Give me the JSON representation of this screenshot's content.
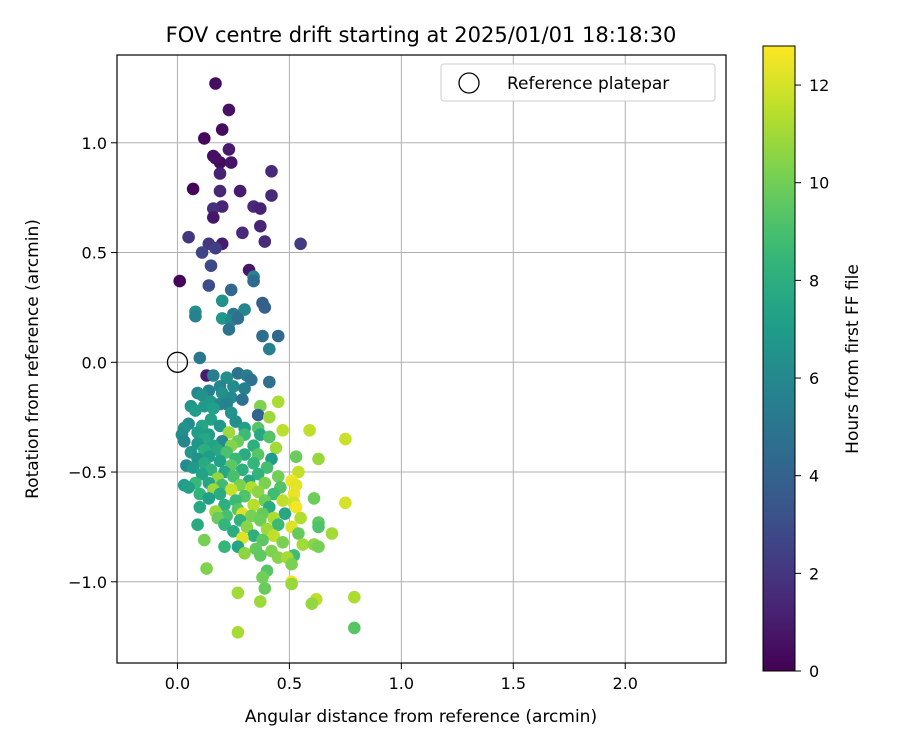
{
  "chart_data": {
    "type": "scatter",
    "title": "FOV centre drift starting at 2025/01/01 18:18:30",
    "xlabel": "Angular distance from reference (arcmin)",
    "ylabel": "Rotation from reference (arcmin)",
    "xlim": [
      -0.27,
      2.45
    ],
    "ylim": [
      -1.37,
      1.4
    ],
    "x_ticks": [
      0.0,
      0.5,
      1.0,
      1.5,
      2.0
    ],
    "x_tick_labels": [
      "0.0",
      "0.5",
      "1.0",
      "1.5",
      "2.0"
    ],
    "y_ticks": [
      -1.0,
      -0.5,
      0.0,
      0.5,
      1.0
    ],
    "y_tick_labels": [
      "−1.0",
      "−0.5",
      "0.0",
      "0.5",
      "1.0"
    ],
    "grid": true,
    "legend_position": "top-right",
    "legend": [
      {
        "label": "Reference platepar",
        "marker": "open-circle"
      }
    ],
    "reference_point": {
      "x": 0.0,
      "y": 0.0
    },
    "colorbar": {
      "label": "Hours from first FF file",
      "colormap": "viridis",
      "range": [
        0,
        12.8
      ],
      "ticks": [
        0,
        2,
        4,
        6,
        8,
        10,
        12
      ],
      "tick_labels": [
        "0",
        "2",
        "4",
        "6",
        "8",
        "10",
        "12"
      ]
    },
    "points": [
      [
        0.17,
        1.27,
        0.5
      ],
      [
        0.23,
        1.15,
        0.6
      ],
      [
        0.2,
        1.06,
        0.4
      ],
      [
        0.12,
        1.02,
        0.3
      ],
      [
        0.16,
        0.94,
        0.5
      ],
      [
        0.19,
        0.91,
        0.4
      ],
      [
        0.24,
        0.91,
        0.7
      ],
      [
        0.17,
        0.93,
        0.6
      ],
      [
        0.23,
        0.97,
        0.9
      ],
      [
        0.42,
        0.87,
        1.5
      ],
      [
        0.19,
        0.86,
        1.2
      ],
      [
        0.07,
        0.79,
        0.2
      ],
      [
        0.19,
        0.78,
        1.4
      ],
      [
        0.28,
        0.78,
        1.0
      ],
      [
        0.42,
        0.76,
        1.6
      ],
      [
        0.2,
        0.71,
        1.3
      ],
      [
        0.34,
        0.71,
        1.5
      ],
      [
        0.16,
        0.7,
        1.7
      ],
      [
        0.37,
        0.7,
        1.2
      ],
      [
        0.16,
        0.66,
        0.8
      ],
      [
        0.37,
        0.62,
        1.3
      ],
      [
        0.29,
        0.59,
        1.5
      ],
      [
        0.05,
        0.57,
        2.1
      ],
      [
        0.55,
        0.54,
        2.3
      ],
      [
        0.14,
        0.54,
        2.0
      ],
      [
        0.2,
        0.54,
        1.0
      ],
      [
        0.39,
        0.55,
        1.6
      ],
      [
        0.17,
        0.52,
        2.4
      ],
      [
        0.11,
        0.5,
        2.6
      ],
      [
        0.15,
        0.44,
        2.8
      ],
      [
        0.32,
        0.42,
        0.8
      ],
      [
        0.34,
        0.39,
        5.8
      ],
      [
        0.01,
        0.37,
        0.2
      ],
      [
        0.34,
        0.37,
        4.4
      ],
      [
        0.14,
        0.35,
        3.0
      ],
      [
        0.24,
        0.33,
        4.2
      ],
      [
        0.2,
        0.28,
        6.5
      ],
      [
        0.38,
        0.27,
        3.8
      ],
      [
        0.39,
        0.25,
        3.9
      ],
      [
        0.08,
        0.23,
        6.3
      ],
      [
        0.3,
        0.24,
        5.9
      ],
      [
        0.25,
        0.22,
        5.1
      ],
      [
        0.08,
        0.21,
        5.7
      ],
      [
        0.2,
        0.2,
        6.8
      ],
      [
        0.24,
        0.19,
        6.0
      ],
      [
        0.27,
        0.2,
        4.7
      ],
      [
        0.23,
        0.15,
        4.9
      ],
      [
        0.38,
        0.12,
        4.6
      ],
      [
        0.45,
        0.12,
        4.3
      ],
      [
        0.41,
        0.06,
        5.6
      ],
      [
        0.1,
        0.02,
        5.1
      ],
      [
        0.13,
        -0.06,
        1.0
      ],
      [
        0.16,
        -0.06,
        5.4
      ],
      [
        0.27,
        -0.05,
        4.9
      ],
      [
        0.31,
        -0.06,
        5.3
      ],
      [
        0.22,
        -0.07,
        6.3
      ],
      [
        0.33,
        -0.08,
        4.8
      ],
      [
        0.41,
        -0.09,
        4.7
      ],
      [
        0.19,
        -0.11,
        5.9
      ],
      [
        0.25,
        -0.11,
        6.2
      ],
      [
        0.3,
        -0.12,
        5.5
      ],
      [
        0.14,
        -0.13,
        5.7
      ],
      [
        0.2,
        -0.14,
        6.4
      ],
      [
        0.09,
        -0.14,
        5.9
      ],
      [
        0.11,
        -0.15,
        6.5
      ],
      [
        0.24,
        -0.16,
        6.1
      ],
      [
        0.29,
        -0.17,
        4.8
      ],
      [
        0.15,
        -0.18,
        6.9
      ],
      [
        0.19,
        -0.19,
        6.0
      ],
      [
        0.22,
        -0.19,
        5.7
      ],
      [
        0.06,
        -0.2,
        6.6
      ],
      [
        0.12,
        -0.2,
        6.9
      ],
      [
        0.37,
        -0.2,
        10.3
      ],
      [
        0.16,
        -0.21,
        7.2
      ],
      [
        0.45,
        -0.18,
        11.2
      ],
      [
        0.08,
        -0.22,
        7.0
      ],
      [
        0.24,
        -0.23,
        6.6
      ],
      [
        0.36,
        -0.24,
        4.1
      ],
      [
        0.41,
        -0.25,
        10.9
      ],
      [
        0.15,
        -0.26,
        7.3
      ],
      [
        0.26,
        -0.27,
        6.4
      ],
      [
        0.05,
        -0.28,
        6.2
      ],
      [
        0.11,
        -0.29,
        7.5
      ],
      [
        0.19,
        -0.29,
        6.8
      ],
      [
        0.03,
        -0.3,
        6.5
      ],
      [
        0.3,
        -0.3,
        7.1
      ],
      [
        0.36,
        -0.3,
        9.4
      ],
      [
        0.47,
        -0.31,
        11.5
      ],
      [
        0.59,
        -0.31,
        11.6
      ],
      [
        0.09,
        -0.32,
        7.1
      ],
      [
        0.23,
        -0.32,
        10.9
      ],
      [
        0.02,
        -0.33,
        6.3
      ],
      [
        0.14,
        -0.33,
        7.0
      ],
      [
        0.3,
        -0.33,
        8.7
      ],
      [
        0.37,
        -0.33,
        7.6
      ],
      [
        0.41,
        -0.34,
        9.3
      ],
      [
        0.75,
        -0.35,
        11.8
      ],
      [
        0.12,
        -0.35,
        7.6
      ],
      [
        0.2,
        -0.36,
        6.1
      ],
      [
        0.27,
        -0.36,
        9.8
      ],
      [
        0.03,
        -0.36,
        5.9
      ],
      [
        0.09,
        -0.37,
        6.7
      ],
      [
        0.16,
        -0.38,
        7.4
      ],
      [
        0.24,
        -0.38,
        10.4
      ],
      [
        0.34,
        -0.38,
        8.1
      ],
      [
        0.44,
        -0.39,
        11.0
      ],
      [
        0.12,
        -0.4,
        8.0
      ],
      [
        0.18,
        -0.4,
        7.7
      ],
      [
        0.06,
        -0.41,
        6.8
      ],
      [
        0.22,
        -0.41,
        9.1
      ],
      [
        0.3,
        -0.42,
        7.9
      ],
      [
        0.36,
        -0.42,
        9.4
      ],
      [
        0.63,
        -0.44,
        10.8
      ],
      [
        0.14,
        -0.43,
        7.1
      ],
      [
        0.09,
        -0.44,
        6.5
      ],
      [
        0.42,
        -0.44,
        7.0
      ],
      [
        0.53,
        -0.43,
        9.8
      ],
      [
        0.26,
        -0.44,
        8.6
      ],
      [
        0.19,
        -0.45,
        7.3
      ],
      [
        0.34,
        -0.46,
        8.4
      ],
      [
        0.12,
        -0.46,
        7.8
      ],
      [
        0.04,
        -0.47,
        6.2
      ],
      [
        0.24,
        -0.47,
        9.5
      ],
      [
        0.4,
        -0.48,
        8.9
      ],
      [
        0.07,
        -0.48,
        6.9
      ],
      [
        0.15,
        -0.49,
        8.2
      ],
      [
        0.29,
        -0.49,
        8.1
      ],
      [
        0.21,
        -0.5,
        7.6
      ],
      [
        0.36,
        -0.51,
        8.3
      ],
      [
        0.54,
        -0.5,
        11.7
      ],
      [
        0.11,
        -0.51,
        7.4
      ],
      [
        0.45,
        -0.52,
        10.0
      ],
      [
        0.25,
        -0.52,
        9.0
      ],
      [
        0.18,
        -0.53,
        10.7
      ],
      [
        0.32,
        -0.54,
        7.7
      ],
      [
        0.51,
        -0.54,
        12.5
      ],
      [
        0.08,
        -0.55,
        8.6
      ],
      [
        0.14,
        -0.55,
        7.5
      ],
      [
        0.39,
        -0.55,
        10.2
      ],
      [
        0.2,
        -0.56,
        8.8
      ],
      [
        0.28,
        -0.56,
        10.2
      ],
      [
        0.03,
        -0.56,
        7.1
      ],
      [
        0.05,
        -0.57,
        7.3
      ],
      [
        0.33,
        -0.57,
        11.3
      ],
      [
        0.46,
        -0.57,
        9.3
      ],
      [
        0.53,
        -0.56,
        12.3
      ],
      [
        0.16,
        -0.58,
        10.9
      ],
      [
        0.24,
        -0.58,
        11.7
      ],
      [
        0.36,
        -0.59,
        10.6
      ],
      [
        0.1,
        -0.6,
        8.3
      ],
      [
        0.19,
        -0.6,
        7.9
      ],
      [
        0.43,
        -0.6,
        8.8
      ],
      [
        0.52,
        -0.6,
        12.4
      ],
      [
        0.3,
        -0.61,
        9.2
      ],
      [
        0.61,
        -0.62,
        9.9
      ],
      [
        0.14,
        -0.62,
        7.2
      ],
      [
        0.26,
        -0.63,
        8.7
      ],
      [
        0.39,
        -0.63,
        9.9
      ],
      [
        0.47,
        -0.63,
        11.6
      ],
      [
        0.52,
        -0.64,
        11.9
      ],
      [
        0.75,
        -0.64,
        12.0
      ],
      [
        0.21,
        -0.65,
        8.1
      ],
      [
        0.34,
        -0.65,
        11.4
      ],
      [
        0.1,
        -0.66,
        7.7
      ],
      [
        0.41,
        -0.66,
        7.9
      ],
      [
        0.53,
        -0.66,
        12.6
      ],
      [
        0.27,
        -0.67,
        9.4
      ],
      [
        0.17,
        -0.68,
        10.8
      ],
      [
        0.29,
        -0.69,
        12.1
      ],
      [
        0.38,
        -0.69,
        9.7
      ],
      [
        0.48,
        -0.69,
        7.6
      ],
      [
        0.22,
        -0.7,
        9.0
      ],
      [
        0.33,
        -0.7,
        10.1
      ],
      [
        0.43,
        -0.71,
        11.2
      ],
      [
        0.18,
        -0.71,
        9.8
      ],
      [
        0.55,
        -0.71,
        11.3
      ],
      [
        0.63,
        -0.73,
        9.6
      ],
      [
        0.28,
        -0.72,
        8.2
      ],
      [
        0.37,
        -0.72,
        9.9
      ],
      [
        0.09,
        -0.74,
        7.8
      ],
      [
        0.63,
        -0.75,
        9.2
      ],
      [
        0.21,
        -0.74,
        8.4
      ],
      [
        0.45,
        -0.74,
        8.7
      ],
      [
        0.51,
        -0.75,
        12.1
      ],
      [
        0.31,
        -0.75,
        10.5
      ],
      [
        0.4,
        -0.76,
        10.9
      ],
      [
        0.25,
        -0.77,
        7.9
      ],
      [
        0.69,
        -0.78,
        11.0
      ],
      [
        0.54,
        -0.78,
        9.7
      ],
      [
        0.34,
        -0.79,
        8.1
      ],
      [
        0.43,
        -0.79,
        11.6
      ],
      [
        0.29,
        -0.8,
        12.2
      ],
      [
        0.12,
        -0.81,
        10.1
      ],
      [
        0.38,
        -0.81,
        9.5
      ],
      [
        0.47,
        -0.82,
        10.2
      ],
      [
        0.56,
        -0.83,
        11.0
      ],
      [
        0.61,
        -0.83,
        10.5
      ],
      [
        0.63,
        -0.84,
        10.1
      ],
      [
        0.27,
        -0.84,
        7.5
      ],
      [
        0.21,
        -0.84,
        8.5
      ],
      [
        0.35,
        -0.85,
        9.7
      ],
      [
        0.42,
        -0.86,
        10.3
      ],
      [
        0.3,
        -0.87,
        10.6
      ],
      [
        0.52,
        -0.88,
        8.8
      ],
      [
        0.37,
        -0.88,
        9.6
      ],
      [
        0.45,
        -0.89,
        10.4
      ],
      [
        0.49,
        -0.89,
        11.1
      ],
      [
        0.51,
        -0.92,
        10.2
      ],
      [
        0.13,
        -0.94,
        10.3
      ],
      [
        0.4,
        -0.95,
        9.4
      ],
      [
        0.38,
        -0.98,
        10.0
      ],
      [
        0.51,
        -1.0,
        12.6
      ],
      [
        0.51,
        -1.01,
        10.8
      ],
      [
        0.39,
        -1.03,
        9.8
      ],
      [
        0.27,
        -1.05,
        11.0
      ],
      [
        0.79,
        -1.07,
        11.2
      ],
      [
        0.62,
        -1.08,
        11.5
      ],
      [
        0.37,
        -1.09,
        10.9
      ],
      [
        0.6,
        -1.1,
        10.7
      ],
      [
        0.79,
        -1.21,
        9.4
      ],
      [
        0.27,
        -1.23,
        11.1
      ]
    ]
  }
}
